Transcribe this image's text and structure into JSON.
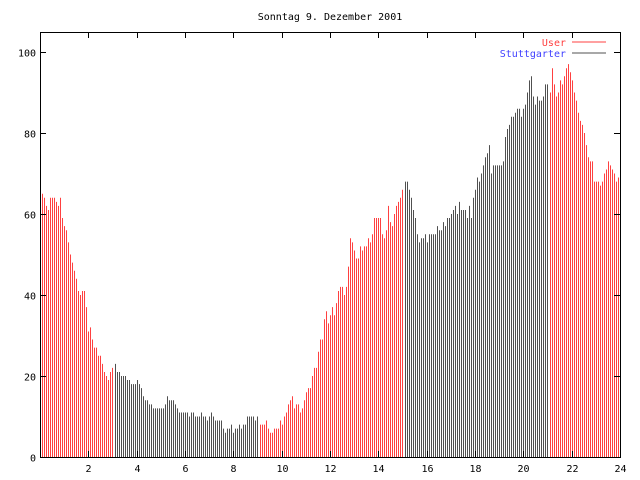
{
  "chart_data": {
    "type": "bar",
    "title": "Sonntag 9. Dezember 2001",
    "xlabel": "",
    "ylabel": "",
    "xlim": [
      0,
      24
    ],
    "ylim": [
      0,
      105
    ],
    "x_step_hours": 0.0833333,
    "xticks": [
      2,
      4,
      6,
      8,
      10,
      12,
      14,
      16,
      18,
      20,
      22,
      24
    ],
    "yticks": [
      0,
      20,
      40,
      60,
      80,
      100
    ],
    "grid": false,
    "legend_position": "top-right",
    "legend": [
      {
        "name": "User",
        "color": "#ff4040",
        "text_color": "#ff4040"
      },
      {
        "name": "Stuttgarter",
        "color": "#505050",
        "text_color": "#4040ff"
      }
    ],
    "series_by_hour_ranges": [
      {
        "name": "User",
        "from": 0,
        "to": 3
      },
      {
        "name": "Stuttgarter",
        "from": 3,
        "to": 9
      },
      {
        "name": "User",
        "from": 9,
        "to": 15
      },
      {
        "name": "Stuttgarter",
        "from": 15,
        "to": 21
      },
      {
        "name": "User",
        "from": 21,
        "to": 24
      }
    ],
    "values": [
      64,
      65,
      64,
      62,
      61,
      64,
      64,
      64,
      63,
      62,
      64,
      59,
      57,
      56,
      53,
      50,
      48,
      46,
      44,
      41,
      40,
      41,
      41,
      37,
      31,
      32,
      29,
      27,
      27,
      25,
      25,
      23,
      21,
      20,
      19,
      21,
      22,
      23,
      21,
      21,
      20,
      20,
      20,
      19,
      19,
      18,
      18,
      18,
      19,
      18,
      17,
      15,
      14,
      14,
      13,
      13,
      12,
      12,
      12,
      12,
      12,
      12,
      13,
      15,
      14,
      14,
      14,
      13,
      12,
      11,
      11,
      11,
      11,
      11,
      10,
      11,
      11,
      10,
      10,
      10,
      11,
      10,
      10,
      9,
      10,
      11,
      10,
      9,
      9,
      9,
      9,
      7,
      6,
      7,
      7,
      8,
      6,
      7,
      7,
      8,
      7,
      8,
      8,
      10,
      10,
      10,
      10,
      9,
      10,
      8,
      8,
      8,
      9,
      7,
      6,
      6,
      7,
      7,
      7,
      9,
      8,
      10,
      11,
      13,
      14,
      15,
      12,
      13,
      13,
      11,
      12,
      14,
      16,
      17,
      17,
      20,
      22,
      22,
      26,
      29,
      29,
      34,
      36,
      33,
      35,
      37,
      35,
      38,
      41,
      42,
      42,
      40,
      42,
      47,
      54,
      53,
      51,
      49,
      49,
      52,
      51,
      52,
      52,
      54,
      53,
      55,
      59,
      59,
      59,
      59,
      55,
      54,
      56,
      62,
      58,
      57,
      60,
      62,
      63,
      64,
      66,
      68,
      68,
      66,
      64,
      61,
      59,
      55,
      53,
      54,
      54,
      55,
      53,
      55,
      55,
      55,
      55,
      57,
      56,
      56,
      58,
      57,
      59,
      59,
      60,
      61,
      62,
      60,
      63,
      61,
      61,
      61,
      59,
      62,
      59,
      64,
      66,
      69,
      68,
      70,
      72,
      74,
      75,
      77,
      70,
      72,
      72,
      72,
      72,
      72,
      73,
      79,
      81,
      82,
      84,
      84,
      85,
      86,
      86,
      84,
      86,
      87,
      90,
      93,
      94,
      89,
      87,
      89,
      88,
      88,
      89,
      92,
      92,
      90,
      96,
      92,
      89,
      90,
      93,
      92,
      94,
      96,
      97,
      95,
      93,
      90,
      88,
      85,
      83,
      82,
      80,
      77,
      74,
      73,
      73,
      68,
      68,
      68,
      67,
      68,
      70,
      71,
      73,
      72,
      71,
      70,
      68,
      69
    ]
  }
}
